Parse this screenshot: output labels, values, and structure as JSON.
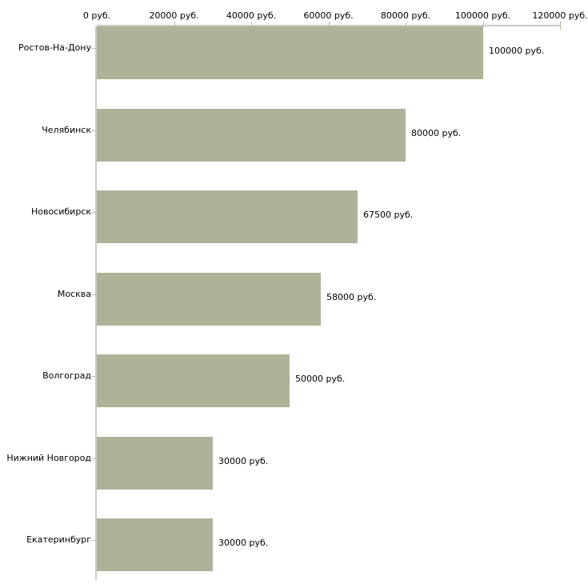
{
  "chart_data": {
    "type": "bar",
    "orientation": "horizontal",
    "title": "",
    "categories": [
      "Ростов-На-Дону",
      "Челябинск",
      "Новосибирск",
      "Москва",
      "Волгоград",
      "Нижний Новгород",
      "Екатеринбург"
    ],
    "values": [
      100000,
      80000,
      67500,
      58000,
      50000,
      30000,
      30000
    ],
    "bar_value_labels": [
      "100000 руб.",
      "80000 руб.",
      "67500 руб.",
      "58000 руб.",
      "50000 руб.",
      "30000 руб.",
      "30000 руб."
    ],
    "x_axis": {
      "position": "top",
      "range": [
        0,
        120000
      ],
      "tick_values": [
        0,
        20000,
        40000,
        60000,
        80000,
        100000,
        120000
      ],
      "tick_labels": [
        "0 руб.",
        "20000 руб.",
        "40000 руб.",
        "60000 руб.",
        "80000 руб.",
        "100000 руб.",
        "120000 руб."
      ]
    },
    "unit": "руб.",
    "grid": false,
    "legend": false,
    "colors": {
      "bar": "#adb398",
      "axis_line": "#c9c9c9",
      "tick": "#b6b99c",
      "label_dash": "#b9b9b9",
      "text": "#000000",
      "background": "#ffffff"
    }
  }
}
